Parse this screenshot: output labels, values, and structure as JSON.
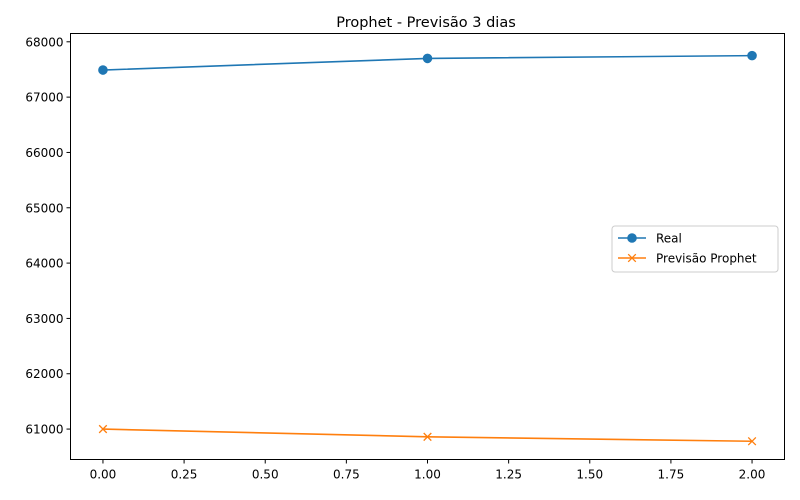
{
  "chart_data": {
    "type": "line",
    "title": "Prophet - Previsão 3 dias",
    "xlabel": "",
    "ylabel": "",
    "x": [
      0,
      1,
      2
    ],
    "xlim": [
      -0.1,
      2.1
    ],
    "ylim": [
      60450,
      68150
    ],
    "xticks": [
      0.0,
      0.25,
      0.5,
      0.75,
      1.0,
      1.25,
      1.5,
      1.75,
      2.0
    ],
    "xtick_labels": [
      "0.00",
      "0.25",
      "0.50",
      "0.75",
      "1.00",
      "1.25",
      "1.50",
      "1.75",
      "2.00"
    ],
    "yticks": [
      61000,
      62000,
      63000,
      64000,
      65000,
      66000,
      67000,
      68000
    ],
    "ytick_labels": [
      "61000",
      "62000",
      "63000",
      "64000",
      "65000",
      "66000",
      "67000",
      "68000"
    ],
    "grid": false,
    "legend_position": "center-right",
    "series": [
      {
        "name": "Real",
        "values": [
          67490,
          67700,
          67750
        ],
        "color": "#1f77b4",
        "marker": "circle"
      },
      {
        "name": "Previsão Prophet",
        "values": [
          61000,
          60860,
          60780
        ],
        "color": "#ff7f0e",
        "marker": "x"
      }
    ]
  }
}
